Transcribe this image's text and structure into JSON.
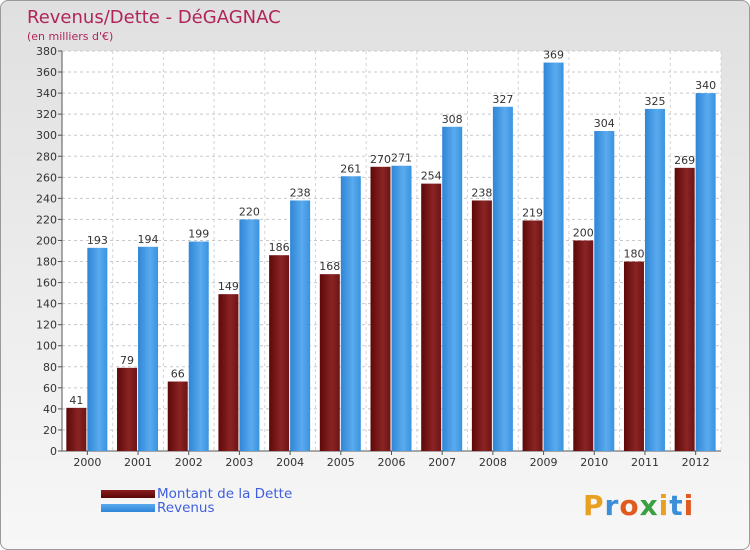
{
  "title": "Revenus/Dette - DéGAGNAC",
  "subtitle": "(en milliers d'€)",
  "logo_text": "Proxiti",
  "chart_data": {
    "type": "bar",
    "categories": [
      "2000",
      "2001",
      "2002",
      "2003",
      "2004",
      "2005",
      "2006",
      "2007",
      "2008",
      "2009",
      "2010",
      "2011",
      "2012"
    ],
    "series": [
      {
        "name": "Montant de la Dette",
        "color": "#7a1414",
        "values": [
          41,
          79,
          66,
          149,
          186,
          168,
          270,
          254,
          238,
          219,
          200,
          180,
          269
        ]
      },
      {
        "name": "Revenus",
        "color": "#3a93e0",
        "values": [
          193,
          194,
          199,
          220,
          238,
          261,
          271,
          308,
          327,
          369,
          304,
          325,
          340
        ]
      }
    ],
    "ylim": [
      0,
      380
    ],
    "yticks": [
      0,
      20,
      40,
      60,
      80,
      100,
      120,
      140,
      160,
      180,
      200,
      220,
      240,
      260,
      280,
      300,
      320,
      340,
      360,
      380
    ],
    "grid": true,
    "legend_position": "bottom-left"
  }
}
